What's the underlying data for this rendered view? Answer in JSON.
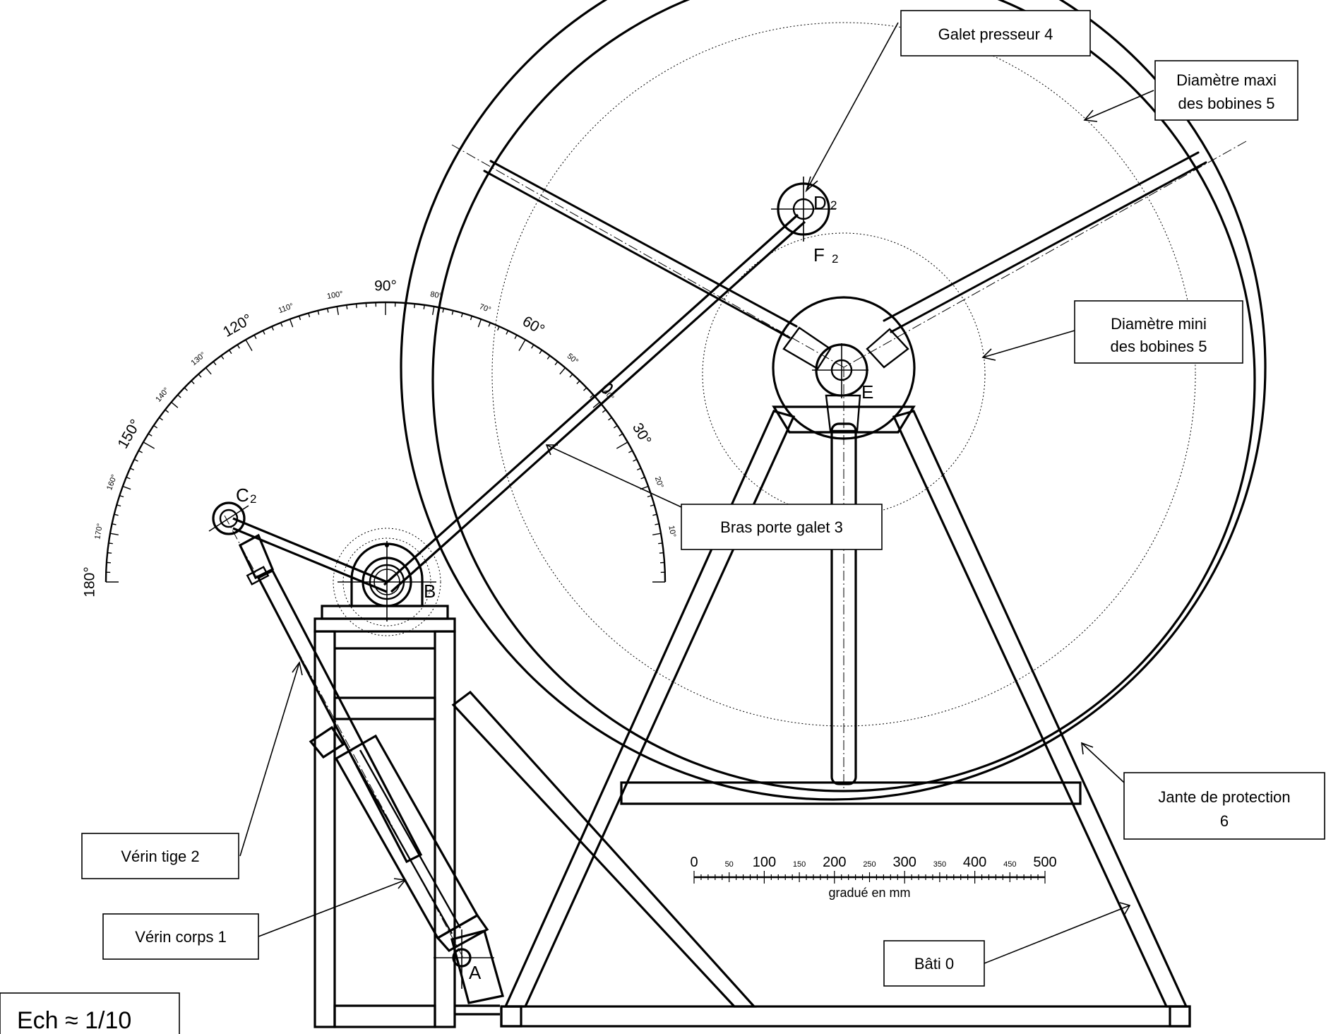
{
  "labels": {
    "galet": "Galet presseur 4",
    "diam_maxi_l1": "Diamètre maxi",
    "diam_maxi_l2": "des bobines 5",
    "diam_mini_l1": "Diamètre mini",
    "diam_mini_l2": "des bobines 5",
    "bras": "Bras porte galet 3",
    "jante_l1": "Jante de protection",
    "jante_l2": "6",
    "verin_tige": "Vérin tige 2",
    "verin_corps": "Vérin corps 1",
    "bati": "Bâti 0",
    "echelle": "Ech ≈ 1/10"
  },
  "points": {
    "A": "A",
    "B": "B",
    "C": "C",
    "C_sub": "2",
    "D": "D",
    "D_sub": "2",
    "E": "E",
    "F": "F",
    "F_sub": "2"
  },
  "protractor": {
    "major": [
      "30°",
      "60°",
      "90°",
      "120°",
      "150°",
      "180°"
    ],
    "minor": [
      "10°",
      "20°",
      "40°",
      "50°",
      "70°",
      "80°",
      "100°",
      "110°",
      "130°",
      "140°",
      "160°",
      "170°"
    ]
  },
  "scale_bar": {
    "major": [
      "0",
      "100",
      "200",
      "300",
      "400",
      "500"
    ],
    "minor": [
      "50",
      "150",
      "250",
      "350",
      "450"
    ],
    "caption": "gradué en mm"
  }
}
